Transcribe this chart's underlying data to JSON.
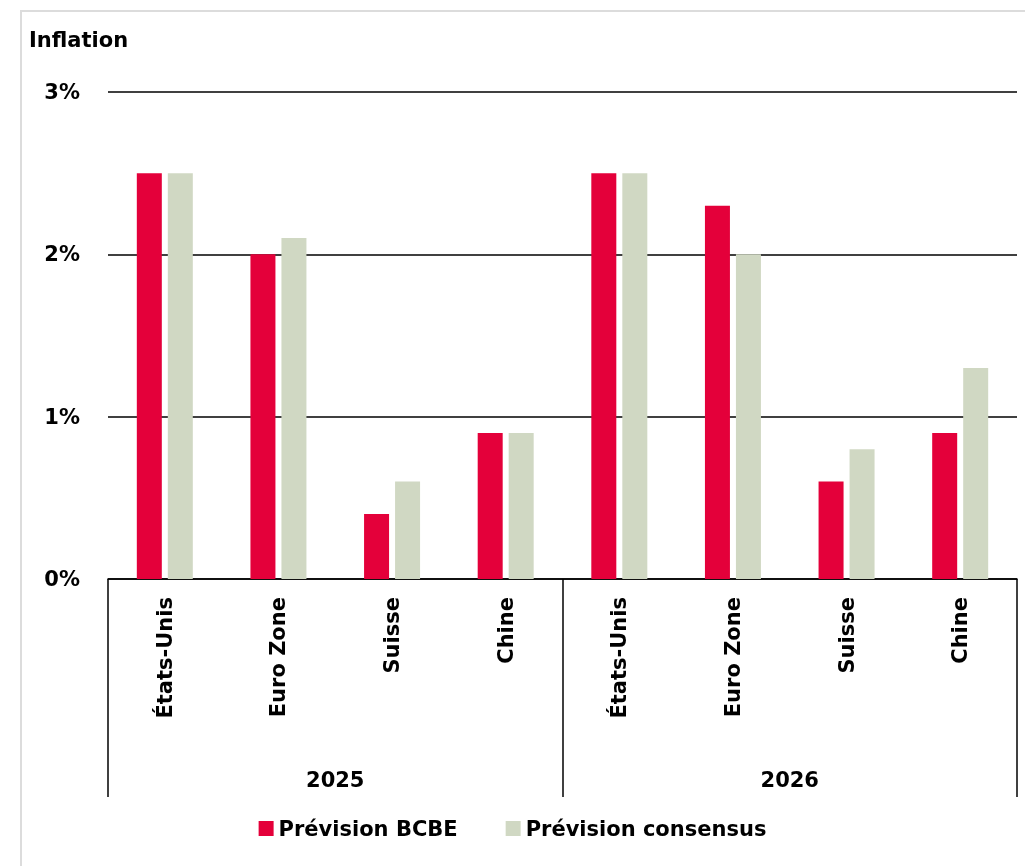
{
  "chart_data": {
    "type": "bar",
    "ylabel": "Inflation",
    "categories": [
      "États-Unis",
      "Euro Zone",
      "Suisse",
      "Chine",
      "États-Unis",
      "Euro Zone",
      "Suisse",
      "Chine"
    ],
    "series": [
      {
        "name": "Prévision BCBE",
        "color": "#e4003a",
        "values": [
          2.5,
          2.0,
          0.4,
          0.9,
          2.5,
          2.3,
          0.6,
          0.9
        ]
      },
      {
        "name": "Prévision consensus",
        "color": "#d0d8c3",
        "values": [
          2.5,
          2.1,
          0.6,
          0.9,
          2.5,
          2.0,
          0.8,
          1.3
        ]
      }
    ],
    "ylim": [
      0,
      3
    ],
    "yticks": [
      {
        "value": 0,
        "label": "0%"
      },
      {
        "value": 1,
        "label": "1%"
      },
      {
        "value": 2,
        "label": "2%"
      },
      {
        "value": 3,
        "label": "3%"
      }
    ],
    "grid": "y",
    "legend": "bottom",
    "annotations": [
      "2025",
      "2026"
    ]
  }
}
